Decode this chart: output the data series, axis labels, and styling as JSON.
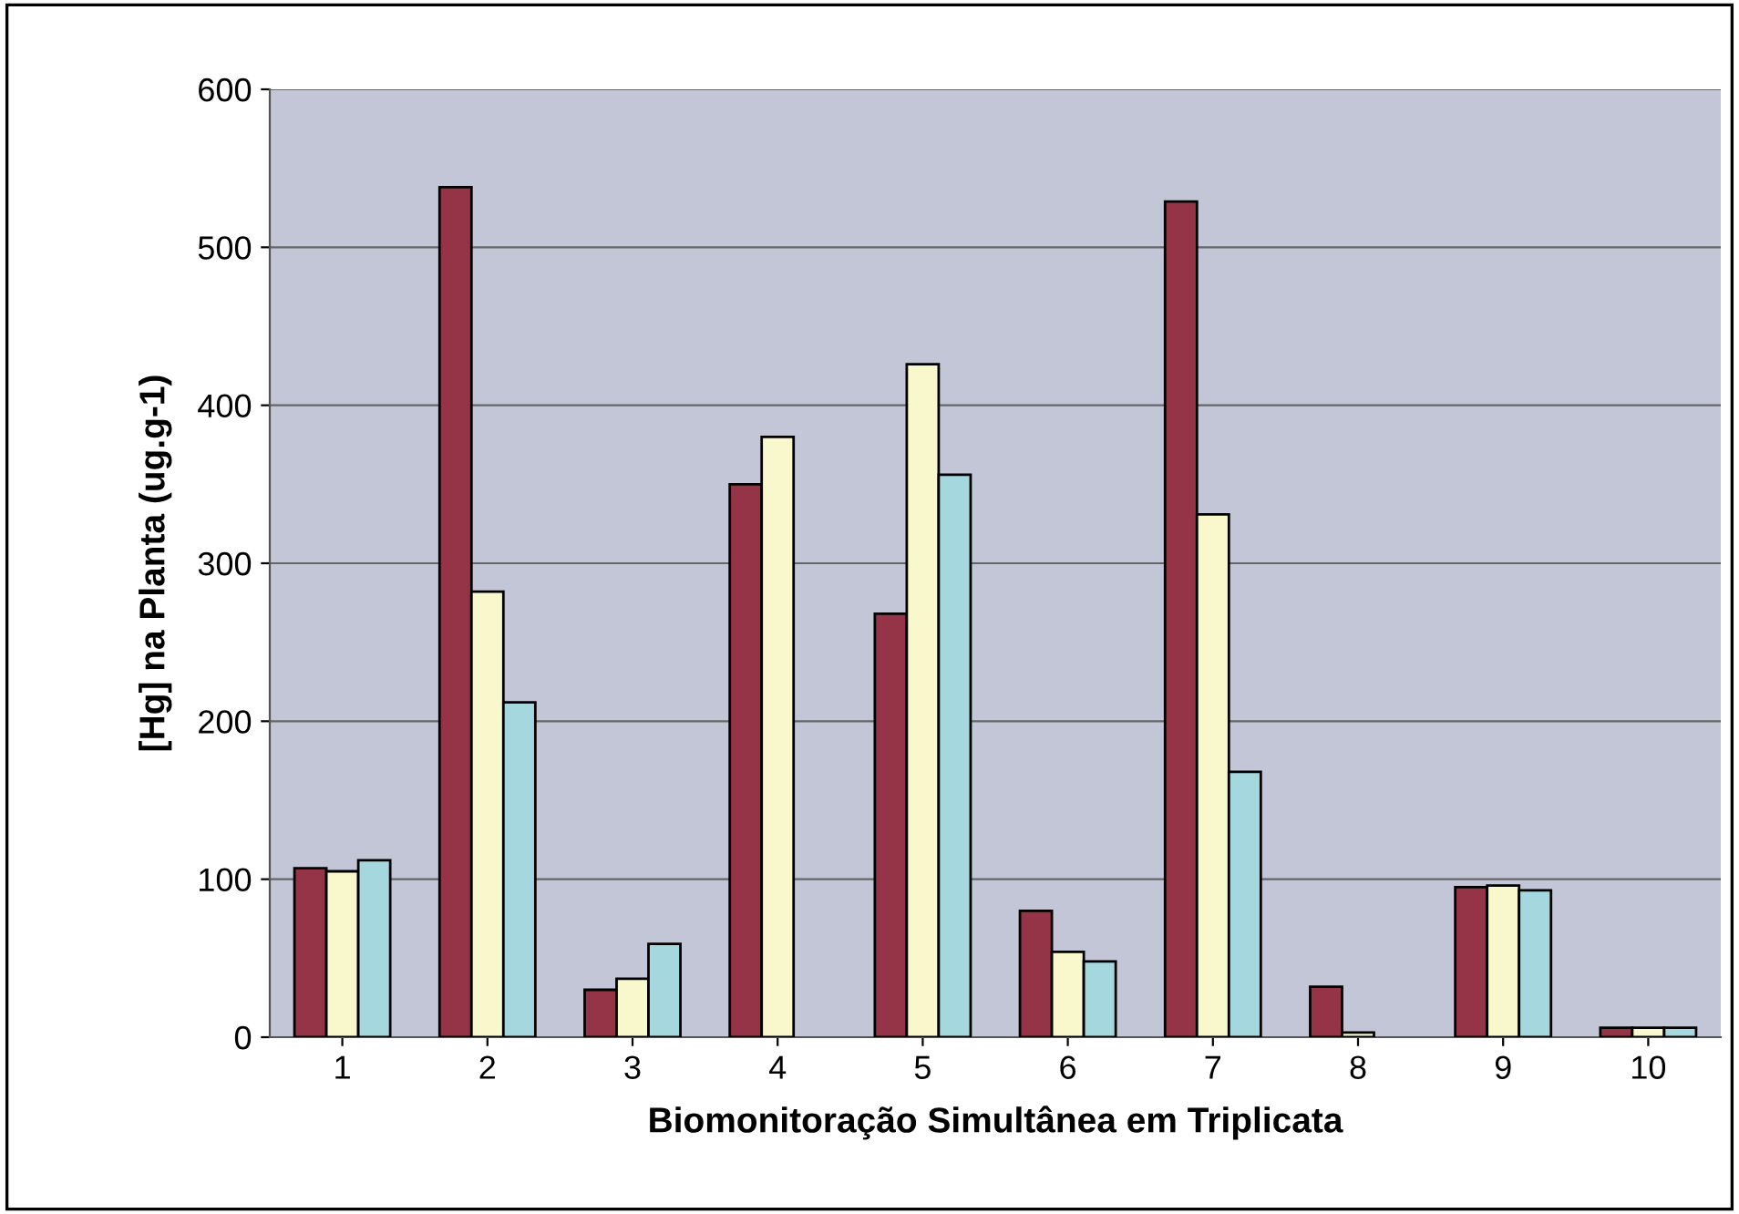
{
  "chart_data": {
    "type": "bar",
    "xlabel": "Biomonitoração Simultânea em Triplicata",
    "ylabel": "[Hg] na Planta (ug.g-1)",
    "categories": [
      "1",
      "2",
      "3",
      "4",
      "5",
      "6",
      "7",
      "8",
      "9",
      "10"
    ],
    "series": [
      {
        "color": "#953446",
        "values": [
          107,
          538,
          30,
          350,
          268,
          80,
          529,
          32,
          95,
          6
        ]
      },
      {
        "color": "#f8f8cc",
        "values": [
          105,
          282,
          37,
          380,
          426,
          54,
          331,
          3,
          96,
          6
        ]
      },
      {
        "color": "#a4d8de",
        "values": [
          112,
          212,
          59,
          null,
          356,
          48,
          168,
          null,
          93,
          6
        ]
      }
    ],
    "ylim": [
      0,
      600
    ],
    "yticks": [
      0,
      100,
      200,
      300,
      400,
      500,
      600
    ],
    "grid": "y"
  }
}
